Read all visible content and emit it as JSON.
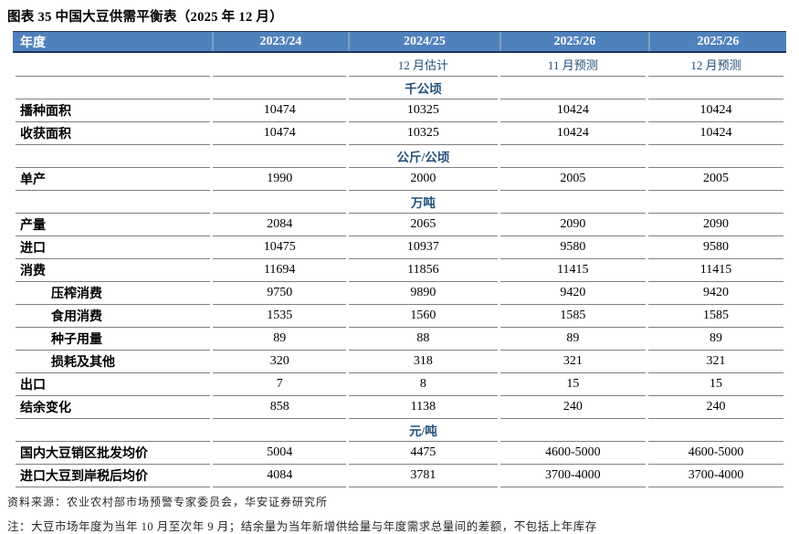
{
  "title": "图表 35 中国大豆供需平衡表（2025 年 12 月）",
  "colors": {
    "header_bg": "#4F81BD",
    "header_divider": "#7E9FC7",
    "header_dark": "#17365D",
    "navy": "#1F4E79",
    "border_gray": "#7F7F7F"
  },
  "table": {
    "header": [
      "年度",
      "2023/24",
      "2024/25",
      "2025/26",
      "2025/26"
    ],
    "subheader": [
      "",
      "",
      "12 月估计",
      "11 月预测",
      "12 月预测"
    ],
    "rows": [
      {
        "type": "section",
        "label": "千公顷"
      },
      {
        "type": "data",
        "label": "播种面积",
        "indent": false,
        "values": [
          "10474",
          "10325",
          "10424",
          "10424"
        ]
      },
      {
        "type": "data",
        "label": "收获面积",
        "indent": false,
        "values": [
          "10474",
          "10325",
          "10424",
          "10424"
        ]
      },
      {
        "type": "section",
        "label": "公斤/公顷"
      },
      {
        "type": "data",
        "label": "单产",
        "indent": false,
        "values": [
          "1990",
          "2000",
          "2005",
          "2005"
        ]
      },
      {
        "type": "section",
        "label": "万吨"
      },
      {
        "type": "data",
        "label": "产量",
        "indent": false,
        "values": [
          "2084",
          "2065",
          "2090",
          "2090"
        ]
      },
      {
        "type": "data",
        "label": "进口",
        "indent": false,
        "values": [
          "10475",
          "10937",
          "9580",
          "9580"
        ]
      },
      {
        "type": "data",
        "label": "消费",
        "indent": false,
        "values": [
          "11694",
          "11856",
          "11415",
          "11415"
        ]
      },
      {
        "type": "data",
        "label": "压榨消费",
        "indent": true,
        "values": [
          "9750",
          "9890",
          "9420",
          "9420"
        ]
      },
      {
        "type": "data",
        "label": "食用消费",
        "indent": true,
        "values": [
          "1535",
          "1560",
          "1585",
          "1585"
        ]
      },
      {
        "type": "data",
        "label": "种子用量",
        "indent": true,
        "values": [
          "89",
          "88",
          "89",
          "89"
        ]
      },
      {
        "type": "data",
        "label": "损耗及其他",
        "indent": true,
        "values": [
          "320",
          "318",
          "321",
          "321"
        ]
      },
      {
        "type": "data",
        "label": "出口",
        "indent": false,
        "values": [
          "7",
          "8",
          "15",
          "15"
        ]
      },
      {
        "type": "data",
        "label": "结余变化",
        "indent": false,
        "values": [
          "858",
          "1138",
          "240",
          "240"
        ]
      },
      {
        "type": "section",
        "label": "元/吨"
      },
      {
        "type": "data",
        "label": "国内大豆销区批发均价",
        "indent": false,
        "values": [
          "5004",
          "4475",
          "4600-5000",
          "4600-5000"
        ]
      },
      {
        "type": "data",
        "label": "进口大豆到岸税后均价",
        "indent": false,
        "values": [
          "4084",
          "3781",
          "3700-4000",
          "3700-4000"
        ]
      }
    ]
  },
  "footer": {
    "source": "资料来源：农业农村部市场预警专家委员会，华安证券研究所",
    "note": "注：大豆市场年度为当年 10 月至次年 9 月；结余量为当年新增供给量与年度需求总量间的差额，不包括上年库存"
  }
}
